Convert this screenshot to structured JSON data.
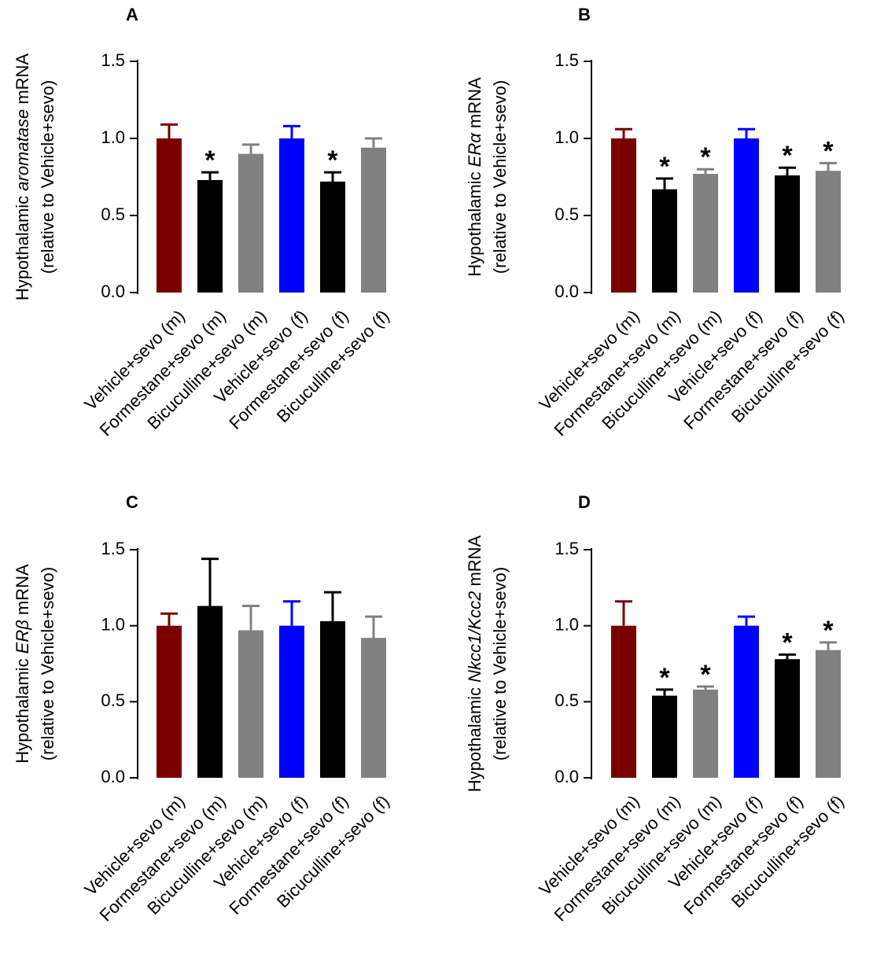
{
  "figure": {
    "colors": {
      "vehicle_m": "#7a0000",
      "formestane": "#000000",
      "bicuculline": "#808080",
      "vehicle_f": "#0000ff"
    }
  },
  "chart_data": [
    {
      "type": "bar",
      "panel": "A",
      "ylabel_line1_prefix": "Hypothalamic ",
      "ylabel_line1_gene": "aromatase",
      "ylabel_line1_suffix": " mRNA",
      "ylabel_line2": "(relative to Vehicle+sevo)",
      "yticks": [
        "0.0",
        "0.5",
        "1.0",
        "1.5"
      ],
      "ylim": [
        0,
        1.5
      ],
      "categories": [
        "Vehicle+sevo (m)",
        "Formestane+sevo (m)",
        "Bicuculline+sevo (m)",
        "Vehicle+sevo (f)",
        "Formestane+sevo (f)",
        "Bicuculline+sevo (f)"
      ],
      "values": [
        1.0,
        0.73,
        0.9,
        1.0,
        0.72,
        0.94
      ],
      "errors": [
        0.09,
        0.05,
        0.06,
        0.08,
        0.06,
        0.06
      ],
      "significance": [
        "",
        "*",
        "",
        "",
        "*",
        ""
      ],
      "colors": [
        "#7a0000",
        "#000000",
        "#808080",
        "#0000ff",
        "#000000",
        "#808080"
      ]
    },
    {
      "type": "bar",
      "panel": "B",
      "ylabel_line1_prefix": "Hypothalamic ",
      "ylabel_line1_gene": "ERα",
      "ylabel_line1_suffix": " mRNA",
      "ylabel_line2": "(relative to Vehicle+sevo)",
      "yticks": [
        "0.0",
        "0.5",
        "1.0",
        "1.5"
      ],
      "ylim": [
        0,
        1.5
      ],
      "categories": [
        "Vehicle+sevo (m)",
        "Formestane+sevo (m)",
        "Bicuculline+sevo (m)",
        "Vehicle+sevo (f)",
        "Formestane+sevo (f)",
        "Bicuculline+sevo (f)"
      ],
      "values": [
        1.0,
        0.67,
        0.77,
        1.0,
        0.76,
        0.79
      ],
      "errors": [
        0.06,
        0.07,
        0.03,
        0.06,
        0.05,
        0.05
      ],
      "significance": [
        "",
        "*",
        "*",
        "",
        "*",
        "*"
      ],
      "colors": [
        "#7a0000",
        "#000000",
        "#808080",
        "#0000ff",
        "#000000",
        "#808080"
      ]
    },
    {
      "type": "bar",
      "panel": "C",
      "ylabel_line1_prefix": "Hypothalamic ",
      "ylabel_line1_gene": "ERβ",
      "ylabel_line1_suffix": " mRNA",
      "ylabel_line2": "(relative to Vehicle+sevo)",
      "yticks": [
        "0.0",
        "0.5",
        "1.0",
        "1.5"
      ],
      "ylim": [
        0,
        1.5
      ],
      "categories": [
        "Vehicle+sevo (m)",
        "Formestane+sevo (m)",
        "Bicuculline+sevo (m)",
        "Vehicle+sevo (f)",
        "Formestane+sevo (f)",
        "Bicuculline+sevo (f)"
      ],
      "values": [
        1.0,
        1.13,
        0.97,
        1.0,
        1.03,
        0.92
      ],
      "errors": [
        0.08,
        0.31,
        0.16,
        0.16,
        0.19,
        0.14
      ],
      "significance": [
        "",
        "",
        "",
        "",
        "",
        ""
      ],
      "colors": [
        "#7a0000",
        "#000000",
        "#808080",
        "#0000ff",
        "#000000",
        "#808080"
      ]
    },
    {
      "type": "bar",
      "panel": "D",
      "ylabel_line1_prefix": "Hypothalamic ",
      "ylabel_line1_gene": "Nkcc1/Kcc2",
      "ylabel_line1_suffix": " mRNA",
      "ylabel_line2": "(relative to Vehicle+sevo)",
      "yticks": [
        "0.0",
        "0.5",
        "1.0",
        "1.5"
      ],
      "ylim": [
        0,
        1.5
      ],
      "categories": [
        "Vehicle+sevo (m)",
        "Formestane+sevo (m)",
        "Bicuculline+sevo (m)",
        "Vehicle+sevo (f)",
        "Formestane+sevo (f)",
        "Bicuculline+sevo (f)"
      ],
      "values": [
        1.0,
        0.54,
        0.58,
        1.0,
        0.78,
        0.84
      ],
      "errors": [
        0.16,
        0.04,
        0.02,
        0.06,
        0.03,
        0.05
      ],
      "significance": [
        "",
        "*",
        "*",
        "",
        "*",
        "*"
      ],
      "colors": [
        "#7a0000",
        "#000000",
        "#808080",
        "#0000ff",
        "#000000",
        "#808080"
      ]
    }
  ]
}
